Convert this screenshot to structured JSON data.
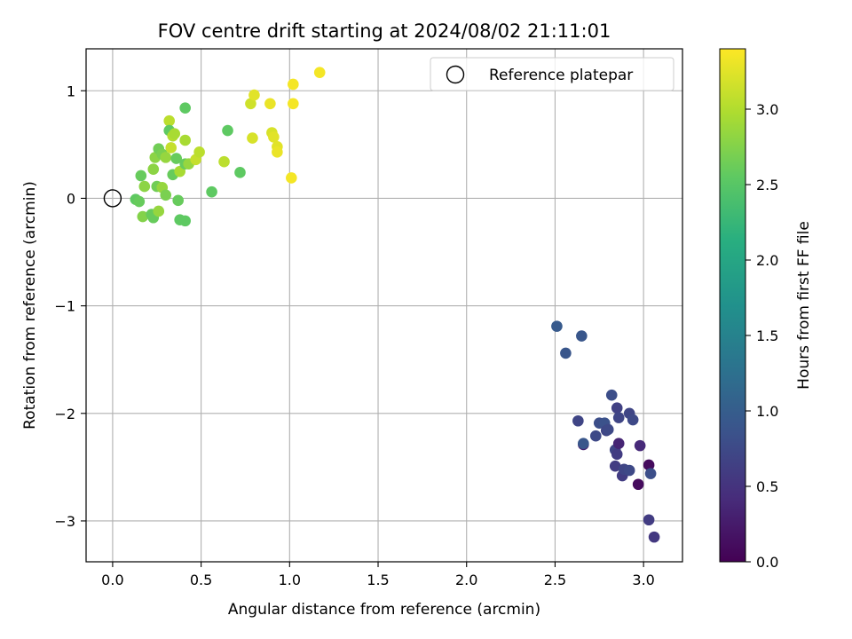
{
  "chart_data": {
    "type": "scatter",
    "title": "FOV centre drift starting at 2024/08/02 21:11:01",
    "xlabel": "Angular distance from reference (arcmin)",
    "ylabel": "Rotation from reference (arcmin)",
    "xlim": [
      -0.15,
      3.22
    ],
    "ylim": [
      -3.38,
      1.39
    ],
    "x_ticks": [
      0.0,
      0.5,
      1.0,
      1.5,
      2.0,
      2.5,
      3.0
    ],
    "y_ticks": [
      1,
      0,
      -1,
      -2,
      -3
    ],
    "x_tick_labels": [
      "0.0",
      "0.5",
      "1.0",
      "1.5",
      "2.0",
      "2.5",
      "3.0"
    ],
    "y_tick_labels": [
      "1",
      "0",
      "−1",
      "−2",
      "−3"
    ],
    "grid": true,
    "legend": {
      "position": "top-right",
      "label": "Reference platepar"
    },
    "reference_point": {
      "x": 0.0,
      "y": 0.0
    },
    "colorbar": {
      "label": "Hours from first FF file",
      "range": [
        0.0,
        3.4
      ],
      "ticks": [
        0.0,
        0.5,
        1.0,
        1.5,
        2.0,
        2.5,
        3.0
      ],
      "tick_labels": [
        "0.0",
        "0.5",
        "1.0",
        "1.5",
        "2.0",
        "2.5",
        "3.0"
      ],
      "colormap": "viridis"
    },
    "points": [
      {
        "x": 0.13,
        "y": -0.01,
        "h": 2.55
      },
      {
        "x": 0.15,
        "y": -0.03,
        "h": 2.6
      },
      {
        "x": 0.16,
        "y": 0.21,
        "h": 2.6
      },
      {
        "x": 0.17,
        "y": -0.17,
        "h": 2.75
      },
      {
        "x": 0.18,
        "y": 0.11,
        "h": 2.8
      },
      {
        "x": 0.22,
        "y": -0.15,
        "h": 2.6
      },
      {
        "x": 0.23,
        "y": 0.27,
        "h": 2.8
      },
      {
        "x": 0.23,
        "y": -0.18,
        "h": 2.6
      },
      {
        "x": 0.24,
        "y": 0.38,
        "h": 2.8
      },
      {
        "x": 0.25,
        "y": 0.11,
        "h": 2.65
      },
      {
        "x": 0.26,
        "y": -0.12,
        "h": 2.85
      },
      {
        "x": 0.26,
        "y": 0.46,
        "h": 2.65
      },
      {
        "x": 0.28,
        "y": 0.41,
        "h": 2.7
      },
      {
        "x": 0.28,
        "y": 0.1,
        "h": 2.85
      },
      {
        "x": 0.3,
        "y": 0.38,
        "h": 2.85
      },
      {
        "x": 0.3,
        "y": 0.03,
        "h": 2.7
      },
      {
        "x": 0.32,
        "y": 0.72,
        "h": 3.05
      },
      {
        "x": 0.32,
        "y": 0.63,
        "h": 2.55
      },
      {
        "x": 0.33,
        "y": 0.47,
        "h": 3.1
      },
      {
        "x": 0.34,
        "y": 0.58,
        "h": 3.0
      },
      {
        "x": 0.34,
        "y": 0.22,
        "h": 2.6
      },
      {
        "x": 0.35,
        "y": 0.6,
        "h": 2.95
      },
      {
        "x": 0.36,
        "y": 0.37,
        "h": 2.6
      },
      {
        "x": 0.37,
        "y": -0.02,
        "h": 2.6
      },
      {
        "x": 0.38,
        "y": 0.25,
        "h": 2.95
      },
      {
        "x": 0.38,
        "y": -0.2,
        "h": 2.55
      },
      {
        "x": 0.41,
        "y": -0.21,
        "h": 2.55
      },
      {
        "x": 0.41,
        "y": 0.32,
        "h": 2.6
      },
      {
        "x": 0.41,
        "y": 0.84,
        "h": 2.55
      },
      {
        "x": 0.41,
        "y": 0.54,
        "h": 2.95
      },
      {
        "x": 0.43,
        "y": 0.32,
        "h": 2.85
      },
      {
        "x": 0.47,
        "y": 0.36,
        "h": 3.1
      },
      {
        "x": 0.49,
        "y": 0.43,
        "h": 3.05
      },
      {
        "x": 0.56,
        "y": 0.06,
        "h": 2.55
      },
      {
        "x": 0.63,
        "y": 0.34,
        "h": 3.05
      },
      {
        "x": 0.65,
        "y": 0.63,
        "h": 2.55
      },
      {
        "x": 0.72,
        "y": 0.24,
        "h": 2.55
      },
      {
        "x": 0.78,
        "y": 0.88,
        "h": 3.15
      },
      {
        "x": 0.79,
        "y": 0.56,
        "h": 3.2
      },
      {
        "x": 0.8,
        "y": 0.96,
        "h": 3.25
      },
      {
        "x": 0.89,
        "y": 0.88,
        "h": 3.3
      },
      {
        "x": 0.9,
        "y": 0.61,
        "h": 3.2
      },
      {
        "x": 0.91,
        "y": 0.57,
        "h": 3.25
      },
      {
        "x": 0.93,
        "y": 0.48,
        "h": 3.25
      },
      {
        "x": 0.93,
        "y": 0.43,
        "h": 3.3
      },
      {
        "x": 1.01,
        "y": 0.19,
        "h": 3.35
      },
      {
        "x": 1.02,
        "y": 1.06,
        "h": 3.35
      },
      {
        "x": 1.02,
        "y": 0.88,
        "h": 3.35
      },
      {
        "x": 1.17,
        "y": 1.17,
        "h": 3.35
      },
      {
        "x": 2.51,
        "y": -1.19,
        "h": 0.95
      },
      {
        "x": 2.56,
        "y": -1.44,
        "h": 0.9
      },
      {
        "x": 2.63,
        "y": -2.07,
        "h": 0.7
      },
      {
        "x": 2.65,
        "y": -1.28,
        "h": 0.9
      },
      {
        "x": 2.66,
        "y": -2.29,
        "h": 0.3
      },
      {
        "x": 2.66,
        "y": -2.28,
        "h": 0.9
      },
      {
        "x": 2.73,
        "y": -2.21,
        "h": 0.75
      },
      {
        "x": 2.75,
        "y": -2.09,
        "h": 0.8
      },
      {
        "x": 2.78,
        "y": -2.09,
        "h": 0.85
      },
      {
        "x": 2.79,
        "y": -2.16,
        "h": 0.7
      },
      {
        "x": 2.8,
        "y": -2.15,
        "h": 0.75
      },
      {
        "x": 2.82,
        "y": -1.83,
        "h": 0.8
      },
      {
        "x": 2.84,
        "y": -2.34,
        "h": 0.7
      },
      {
        "x": 2.84,
        "y": -2.49,
        "h": 0.6
      },
      {
        "x": 2.85,
        "y": -1.95,
        "h": 0.65
      },
      {
        "x": 2.85,
        "y": -2.38,
        "h": 0.6
      },
      {
        "x": 2.86,
        "y": -2.28,
        "h": 0.35
      },
      {
        "x": 2.86,
        "y": -2.04,
        "h": 0.7
      },
      {
        "x": 2.88,
        "y": -2.58,
        "h": 0.6
      },
      {
        "x": 2.89,
        "y": -2.52,
        "h": 0.7
      },
      {
        "x": 2.92,
        "y": -2.53,
        "h": 0.75
      },
      {
        "x": 2.92,
        "y": -2.0,
        "h": 0.7
      },
      {
        "x": 2.94,
        "y": -2.06,
        "h": 0.75
      },
      {
        "x": 2.97,
        "y": -2.66,
        "h": 0.1
      },
      {
        "x": 2.98,
        "y": -2.3,
        "h": 0.4
      },
      {
        "x": 3.03,
        "y": -2.48,
        "h": 0.1
      },
      {
        "x": 3.03,
        "y": -2.99,
        "h": 0.6
      },
      {
        "x": 3.04,
        "y": -2.56,
        "h": 0.8
      },
      {
        "x": 3.06,
        "y": -3.15,
        "h": 0.55
      }
    ]
  }
}
